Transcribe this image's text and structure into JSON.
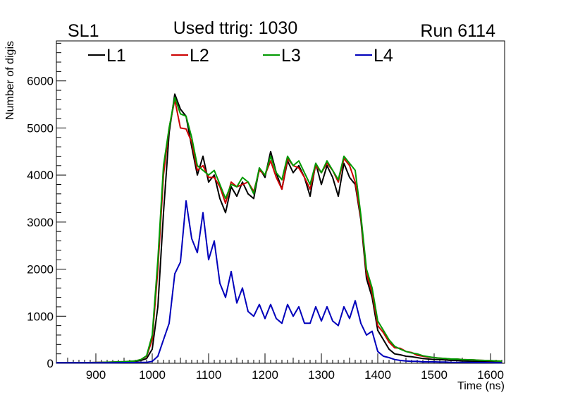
{
  "header": {
    "left_label": "SL1",
    "center_label": "Used ttrig: 1030",
    "right_label": "Run 6114"
  },
  "chart_data": {
    "type": "line",
    "title": "Used ttrig: 1030",
    "xlabel": "Time (ns)",
    "ylabel": "Number of digis",
    "xlim": [
      830,
      1625
    ],
    "ylim": [
      0,
      6850
    ],
    "x_ticks": [
      900,
      1000,
      1100,
      1200,
      1300,
      1400,
      1500,
      1600
    ],
    "y_ticks": [
      0,
      1000,
      2000,
      3000,
      4000,
      5000,
      6000
    ],
    "grid": false,
    "legend_position": "top-left",
    "x": [
      830,
      850,
      870,
      890,
      910,
      930,
      950,
      970,
      980,
      990,
      1000,
      1010,
      1020,
      1030,
      1040,
      1050,
      1060,
      1070,
      1080,
      1090,
      1100,
      1110,
      1120,
      1130,
      1140,
      1150,
      1160,
      1170,
      1180,
      1190,
      1200,
      1210,
      1220,
      1230,
      1240,
      1250,
      1260,
      1270,
      1280,
      1290,
      1300,
      1310,
      1320,
      1330,
      1340,
      1350,
      1360,
      1370,
      1380,
      1390,
      1400,
      1410,
      1420,
      1430,
      1440,
      1450,
      1460,
      1470,
      1480,
      1490,
      1500,
      1510,
      1520,
      1530,
      1540,
      1550,
      1560,
      1570,
      1580,
      1590,
      1600,
      1610,
      1620
    ],
    "series": [
      {
        "name": "L1",
        "color": "#000000",
        "values": [
          15,
          15,
          15,
          15,
          20,
          20,
          30,
          40,
          60,
          100,
          300,
          1200,
          3200,
          4900,
          5720,
          5400,
          5250,
          4600,
          4000,
          4400,
          3850,
          4000,
          3500,
          3200,
          3750,
          3550,
          3850,
          3600,
          3500,
          4150,
          3950,
          4500,
          4050,
          3700,
          4300,
          4050,
          4200,
          3950,
          3550,
          4250,
          3800,
          4200,
          3950,
          3550,
          4250,
          3950,
          3800,
          3050,
          1800,
          1400,
          700,
          500,
          300,
          200,
          180,
          150,
          140,
          120,
          100,
          90,
          80,
          80,
          70,
          60,
          60,
          50,
          45,
          40,
          40,
          35,
          30,
          30,
          25
        ]
      },
      {
        "name": "L2",
        "color": "#cc0000",
        "values": [
          15,
          15,
          15,
          15,
          20,
          25,
          35,
          50,
          80,
          150,
          500,
          2000,
          4000,
          5000,
          5600,
          5000,
          4980,
          4700,
          4100,
          4200,
          3950,
          3950,
          3750,
          3400,
          3850,
          3750,
          3800,
          3850,
          3650,
          4100,
          4000,
          4300,
          3950,
          3700,
          4350,
          4200,
          4150,
          3950,
          3700,
          4200,
          4050,
          4250,
          4100,
          3850,
          4350,
          4200,
          3850,
          3100,
          1900,
          1500,
          800,
          650,
          450,
          330,
          320,
          250,
          230,
          170,
          150,
          130,
          120,
          110,
          100,
          90,
          90,
          80,
          75,
          70,
          65,
          60,
          55,
          50,
          45
        ]
      },
      {
        "name": "L3",
        "color": "#009900",
        "values": [
          15,
          15,
          15,
          15,
          20,
          25,
          35,
          50,
          80,
          160,
          600,
          2200,
          4200,
          5000,
          5650,
          5300,
          5250,
          4800,
          4200,
          4100,
          4000,
          4100,
          3800,
          3500,
          3800,
          3750,
          3950,
          3850,
          3600,
          4150,
          4000,
          4400,
          4050,
          3900,
          4400,
          4200,
          4300,
          4050,
          3800,
          4250,
          4050,
          4300,
          4100,
          3900,
          4400,
          4250,
          4100,
          3150,
          2000,
          1600,
          900,
          700,
          500,
          360,
          300,
          250,
          220,
          200,
          160,
          140,
          120,
          110,
          100,
          90,
          90,
          80,
          75,
          70,
          65,
          60,
          55,
          50,
          45
        ]
      },
      {
        "name": "L4",
        "color": "#0000bb",
        "values": [
          10,
          10,
          10,
          10,
          10,
          10,
          15,
          15,
          20,
          20,
          40,
          150,
          500,
          850,
          1900,
          2150,
          3450,
          2650,
          2350,
          3200,
          2200,
          2600,
          1700,
          1400,
          1950,
          1280,
          1600,
          1100,
          1000,
          1250,
          950,
          1250,
          950,
          850,
          1250,
          1000,
          1200,
          850,
          850,
          1200,
          900,
          1200,
          900,
          800,
          1200,
          950,
          1330,
          850,
          600,
          680,
          250,
          150,
          120,
          80,
          60,
          50,
          40,
          40,
          30,
          30,
          30,
          25,
          25,
          20,
          20,
          20,
          20,
          15,
          15,
          15,
          15,
          10,
          10
        ]
      }
    ]
  }
}
